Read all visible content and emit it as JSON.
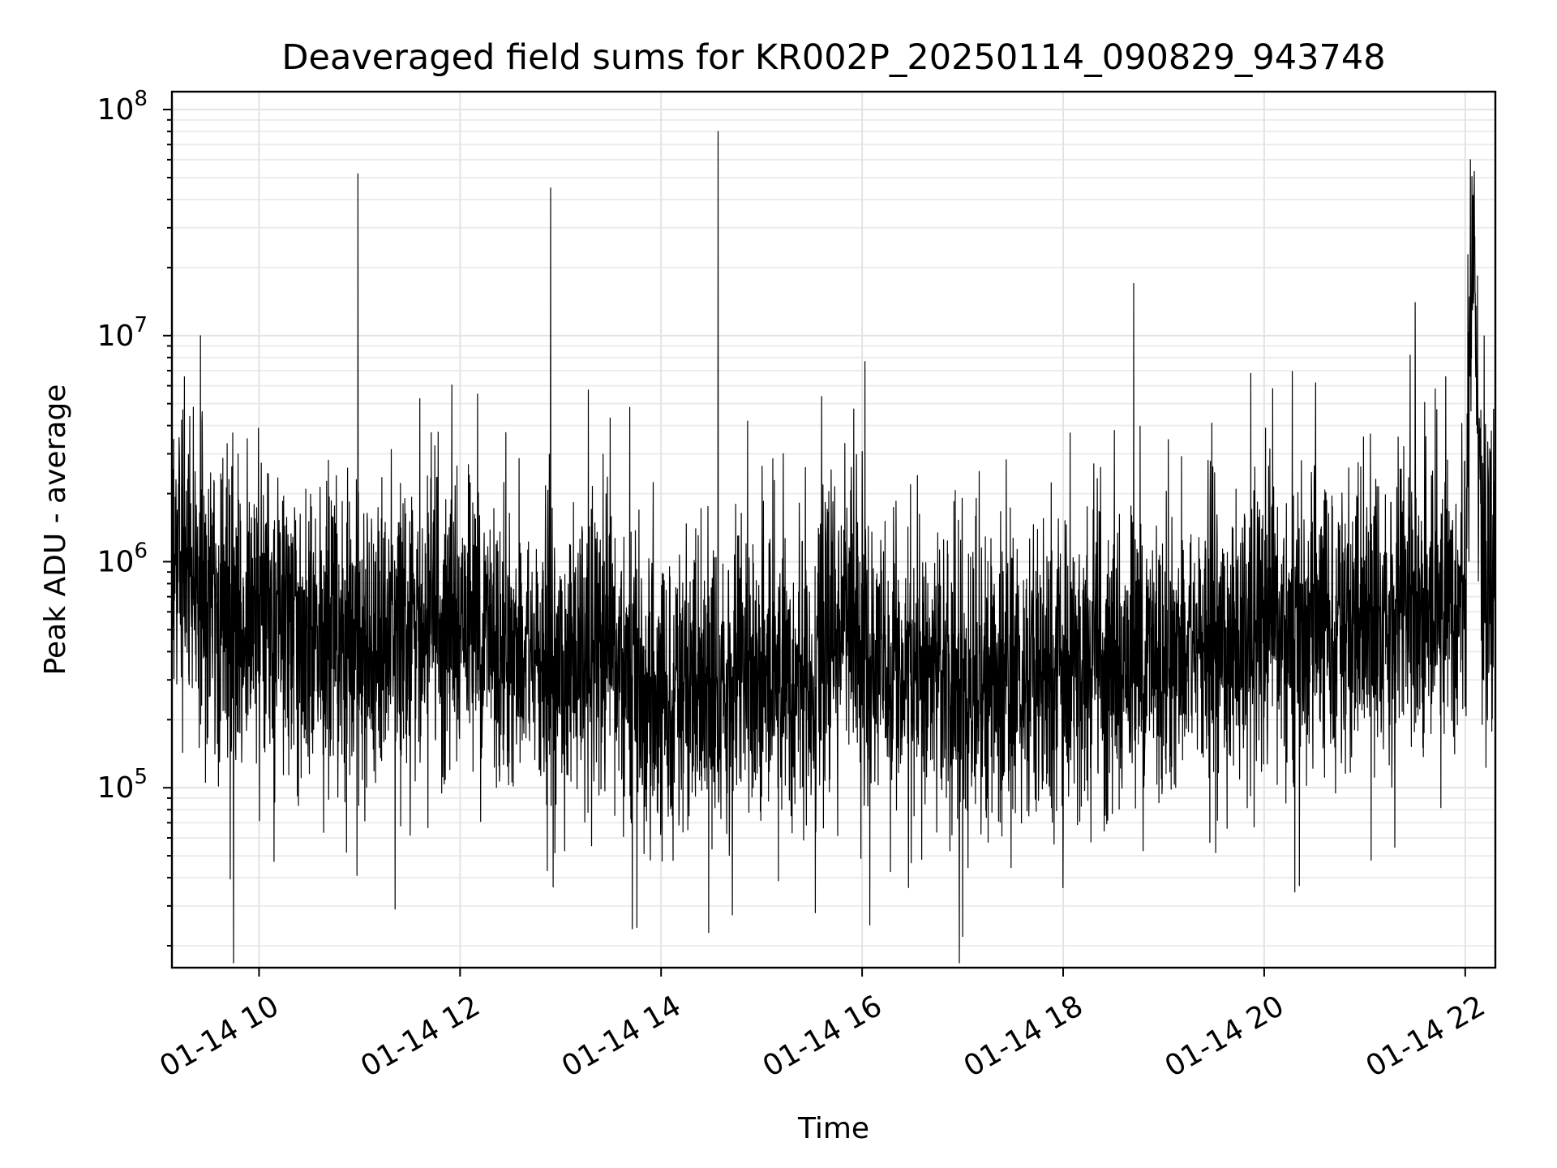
{
  "chart_data": {
    "type": "line",
    "title": "Deaveraged field sums for KR002P_20250114_090829_943748",
    "xlabel": "Time",
    "ylabel": "Peak ADU - average",
    "y_scale": "log",
    "ylim": [
      16000,
      120000000
    ],
    "xlim": [
      "2025-01-14 09:08",
      "2025-01-14 22:18"
    ],
    "grid": true,
    "x_ticks": [
      "01-14 10",
      "01-14 12",
      "01-14 14",
      "01-14 16",
      "01-14 18",
      "01-14 20",
      "01-14 22"
    ],
    "x_tick_times": [
      "2025-01-14 10:00",
      "2025-01-14 12:00",
      "2025-01-14 14:00",
      "2025-01-14 16:00",
      "2025-01-14 18:00",
      "2025-01-14 20:00",
      "2025-01-14 22:00"
    ],
    "y_ticks": [
      {
        "value": 100000,
        "base": "10",
        "exp": "5"
      },
      {
        "value": 1000000,
        "base": "10",
        "exp": "6"
      },
      {
        "value": 10000000,
        "base": "10",
        "exp": "7"
      },
      {
        "value": 100000000,
        "base": "10",
        "exp": "8"
      }
    ],
    "series": [
      {
        "color": "#000000",
        "x": [
          "2025-01-14 09:08",
          "2025-01-14 09:15",
          "2025-01-14 09:20",
          "2025-01-14 09:25",
          "2025-01-14 09:30",
          "2025-01-14 09:35",
          "2025-01-14 09:40",
          "2025-01-14 09:45",
          "2025-01-14 09:50",
          "2025-01-14 09:55",
          "2025-01-14 10:00",
          "2025-01-14 10:15",
          "2025-01-14 10:30",
          "2025-01-14 10:45",
          "2025-01-14 10:59",
          "2025-01-14 11:15",
          "2025-01-14 11:30",
          "2025-01-14 11:45",
          "2025-01-14 12:00",
          "2025-01-14 12:15",
          "2025-01-14 12:30",
          "2025-01-14 12:45",
          "2025-01-14 12:55",
          "2025-01-14 13:10",
          "2025-01-14 13:30",
          "2025-01-14 13:45",
          "2025-01-14 13:55",
          "2025-01-14 14:05",
          "2025-01-14 14:15",
          "2025-01-14 14:25",
          "2025-01-14 14:35",
          "2025-01-14 14:45",
          "2025-01-14 15:00",
          "2025-01-14 15:15",
          "2025-01-14 15:30",
          "2025-01-14 15:45",
          "2025-01-14 15:52",
          "2025-01-14 16:00",
          "2025-01-14 16:15",
          "2025-01-14 16:30",
          "2025-01-14 16:45",
          "2025-01-14 17:00",
          "2025-01-14 17:15",
          "2025-01-14 17:30",
          "2025-01-14 17:45",
          "2025-01-14 18:00",
          "2025-01-14 18:15",
          "2025-01-14 18:30",
          "2025-01-14 18:45",
          "2025-01-14 19:00",
          "2025-01-14 19:15",
          "2025-01-14 19:30",
          "2025-01-14 19:45",
          "2025-01-14 20:00",
          "2025-01-14 20:15",
          "2025-01-14 20:30",
          "2025-01-14 20:45",
          "2025-01-14 21:00",
          "2025-01-14 21:15",
          "2025-01-14 21:30",
          "2025-01-14 21:45",
          "2025-01-14 21:55",
          "2025-01-14 22:00",
          "2025-01-14 22:05",
          "2025-01-14 22:10",
          "2025-01-14 22:18"
        ],
        "y": [
          1500000,
          1100000,
          900000,
          700000,
          650000,
          600000,
          550000,
          580000,
          500000,
          520000,
          550000,
          600000,
          450000,
          400000,
          420000,
          450000,
          420000,
          480000,
          600000,
          500000,
          420000,
          380000,
          300000,
          400000,
          350000,
          330000,
          180000,
          250000,
          300000,
          260000,
          280000,
          300000,
          330000,
          300000,
          350000,
          450000,
          700000,
          400000,
          330000,
          300000,
          300000,
          290000,
          300000,
          310000,
          320000,
          330000,
          340000,
          350000,
          380000,
          400000,
          420000,
          430000,
          440000,
          470000,
          480000,
          500000,
          520000,
          550000,
          580000,
          620000,
          650000,
          700000,
          750000,
          55000000,
          700000,
          800000
        ],
        "spikes": [
          {
            "x": "2025-01-14 09:25",
            "y": 10000000
          },
          {
            "x": "2025-01-14 10:59",
            "y": 52000000
          },
          {
            "x": "2025-01-14 12:54",
            "y": 45000000
          },
          {
            "x": "2025-01-14 14:34",
            "y": 80000000
          },
          {
            "x": "2025-01-14 15:32",
            "y": 28000
          },
          {
            "x": "2025-01-14 17:00",
            "y": 22000
          },
          {
            "x": "2025-01-14 18:42",
            "y": 17000000
          },
          {
            "x": "2025-01-14 21:30",
            "y": 14000000
          },
          {
            "x": "2025-01-14 22:03",
            "y": 60000000
          }
        ]
      }
    ]
  }
}
